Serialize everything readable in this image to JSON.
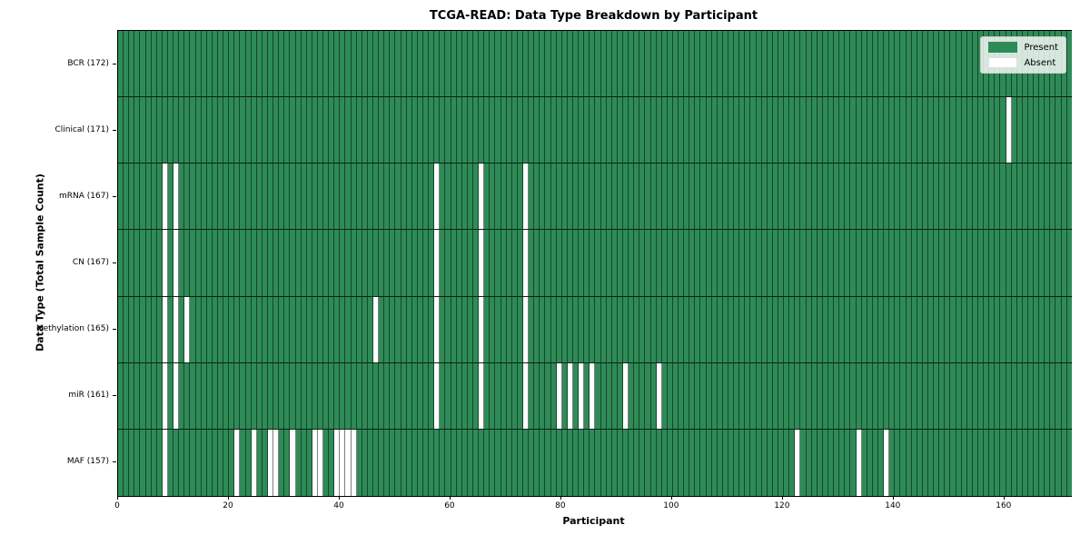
{
  "title": "TCGA-READ: Data Type Breakdown by Participant",
  "legend": {
    "present_label": "Present",
    "absent_label": "Absent"
  },
  "colors": {
    "present": "#2e8b57",
    "absent": "#ffffff",
    "gridline": "rgba(0,0,0,0.5)"
  },
  "chart_data": {
    "type": "heatmap",
    "title": "TCGA-READ: Data Type Breakdown by Participant",
    "xlabel": "Participant",
    "ylabel": "Data Type (Total Sample Count)",
    "n_participants": 172,
    "xlim": [
      0,
      172
    ],
    "x_ticks": [
      0,
      20,
      40,
      60,
      80,
      100,
      120,
      140,
      160
    ],
    "grid": "on",
    "legend_position": "upper right",
    "legend": [
      {
        "label": "Present",
        "color": "#2e8b57"
      },
      {
        "label": "Absent",
        "color": "#ffffff"
      }
    ],
    "value_encoding": {
      "present": 1,
      "absent": 0
    },
    "rows": [
      {
        "label": "BCR (172)",
        "data_type": "BCR",
        "total": 172,
        "absent_participants": []
      },
      {
        "label": "Clinical (171)",
        "data_type": "Clinical",
        "total": 171,
        "absent_participants": [
          160
        ]
      },
      {
        "label": "mRNA (167)",
        "data_type": "mRNA",
        "total": 167,
        "absent_participants": [
          8,
          10,
          57,
          65,
          73
        ]
      },
      {
        "label": "CN (167)",
        "data_type": "CN",
        "total": 167,
        "absent_participants": [
          8,
          10,
          57,
          65,
          73
        ]
      },
      {
        "label": "Methylation (165)",
        "data_type": "Methylation",
        "total": 165,
        "absent_participants": [
          8,
          10,
          12,
          46,
          57,
          65,
          73
        ]
      },
      {
        "label": "miR (161)",
        "data_type": "miR",
        "total": 161,
        "absent_participants": [
          8,
          10,
          57,
          65,
          73,
          79,
          81,
          83,
          85,
          91,
          97
        ]
      },
      {
        "label": "MAF (157)",
        "data_type": "MAF",
        "total": 157,
        "absent_participants": [
          8,
          21,
          24,
          27,
          28,
          31,
          35,
          36,
          39,
          40,
          41,
          42,
          122,
          133,
          138
        ]
      }
    ]
  }
}
